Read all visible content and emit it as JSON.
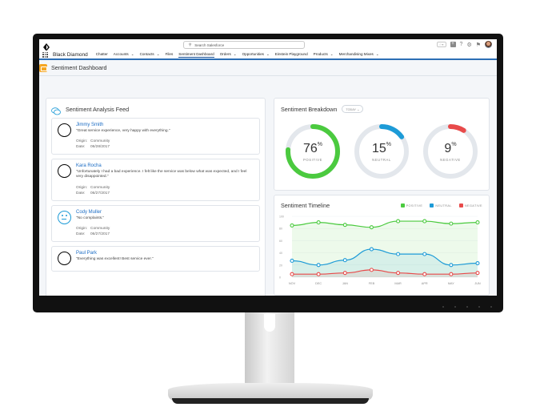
{
  "topbar": {
    "search_placeholder": "Search Salesforce",
    "icons": [
      "favorites-icon",
      "add-icon",
      "help-icon",
      "setup-gear-icon",
      "notifications-bell-icon",
      "user-avatar"
    ]
  },
  "nav": {
    "app_name": "Black Diamond",
    "items": [
      {
        "label": "Chatter",
        "menu": false
      },
      {
        "label": "Accounts",
        "menu": true
      },
      {
        "label": "Contacts",
        "menu": true
      },
      {
        "label": "Files",
        "menu": false
      },
      {
        "label": "Sentiment Dashboard",
        "menu": false,
        "active": true
      },
      {
        "label": "Orders",
        "menu": true
      },
      {
        "label": "Opportunities",
        "menu": true
      },
      {
        "label": "Einstein Playground",
        "menu": false
      },
      {
        "label": "Products",
        "menu": true
      },
      {
        "label": "Merchandising Mixes",
        "menu": true
      }
    ]
  },
  "page": {
    "title": "Sentiment Dashboard"
  },
  "feed": {
    "title": "Sentiment Analysis Feed",
    "origin_label": "Origin:",
    "date_label": "Date:",
    "items": [
      {
        "sentiment": "positive",
        "name": "Jimmy Smith",
        "quote": "\"Great service experience, very happy with everything.\"",
        "origin": "Community",
        "date": "06/28/2017"
      },
      {
        "sentiment": "negative",
        "name": "Kara Rocha",
        "quote": "\"Unfortunately I had a bad experience. I felt like the service was below what was expected, and I feel very disappointed.\"",
        "origin": "Community",
        "date": "06/27/2017"
      },
      {
        "sentiment": "neutral",
        "name": "Cody Muller",
        "quote": "\"No complaints.\"",
        "origin": "Community",
        "date": "06/27/2017"
      },
      {
        "sentiment": "positive",
        "name": "Paul Park",
        "quote": "\"Everything was excellent! Best service ever.\"",
        "origin": "",
        "date": ""
      }
    ]
  },
  "breakdown": {
    "title": "Sentiment Breakdown",
    "filter": "TODAY",
    "items": [
      {
        "value": "76",
        "unit": "%",
        "label": "POSITIVE",
        "percent": 76,
        "color": "#4bca3f"
      },
      {
        "value": "15",
        "unit": "%",
        "label": "NEUTRAL",
        "percent": 15,
        "color": "#1d9bd7"
      },
      {
        "value": "9",
        "unit": "%",
        "label": "NEGATIVE",
        "percent": 9,
        "color": "#e84a4a"
      }
    ]
  },
  "timeline": {
    "title": "Sentiment Timeline",
    "legend": [
      {
        "label": "POSITIVE",
        "color": "#4bca3f"
      },
      {
        "label": "NEUTRAL",
        "color": "#1d9bd7"
      },
      {
        "label": "NEGATIVE",
        "color": "#e84a4a"
      }
    ]
  },
  "chart_data": {
    "type": "line",
    "categories": [
      "NOV",
      "DEC",
      "JAN",
      "FEB",
      "MAR",
      "APR",
      "MAY",
      "JUN"
    ],
    "ylim": [
      0,
      100
    ],
    "yticks": [
      "100",
      "80",
      "60",
      "40",
      "20",
      "0"
    ],
    "series": [
      {
        "name": "POSITIVE",
        "color": "#4bca3f",
        "values": [
          85,
          90,
          86,
          82,
          92,
          92,
          88,
          90
        ]
      },
      {
        "name": "NEUTRAL",
        "color": "#1d9bd7",
        "values": [
          27,
          20,
          28,
          46,
          38,
          38,
          20,
          23
        ]
      },
      {
        "name": "NEGATIVE",
        "color": "#e84a4a",
        "values": [
          5,
          5,
          7,
          12,
          7,
          5,
          5,
          7
        ]
      }
    ]
  }
}
